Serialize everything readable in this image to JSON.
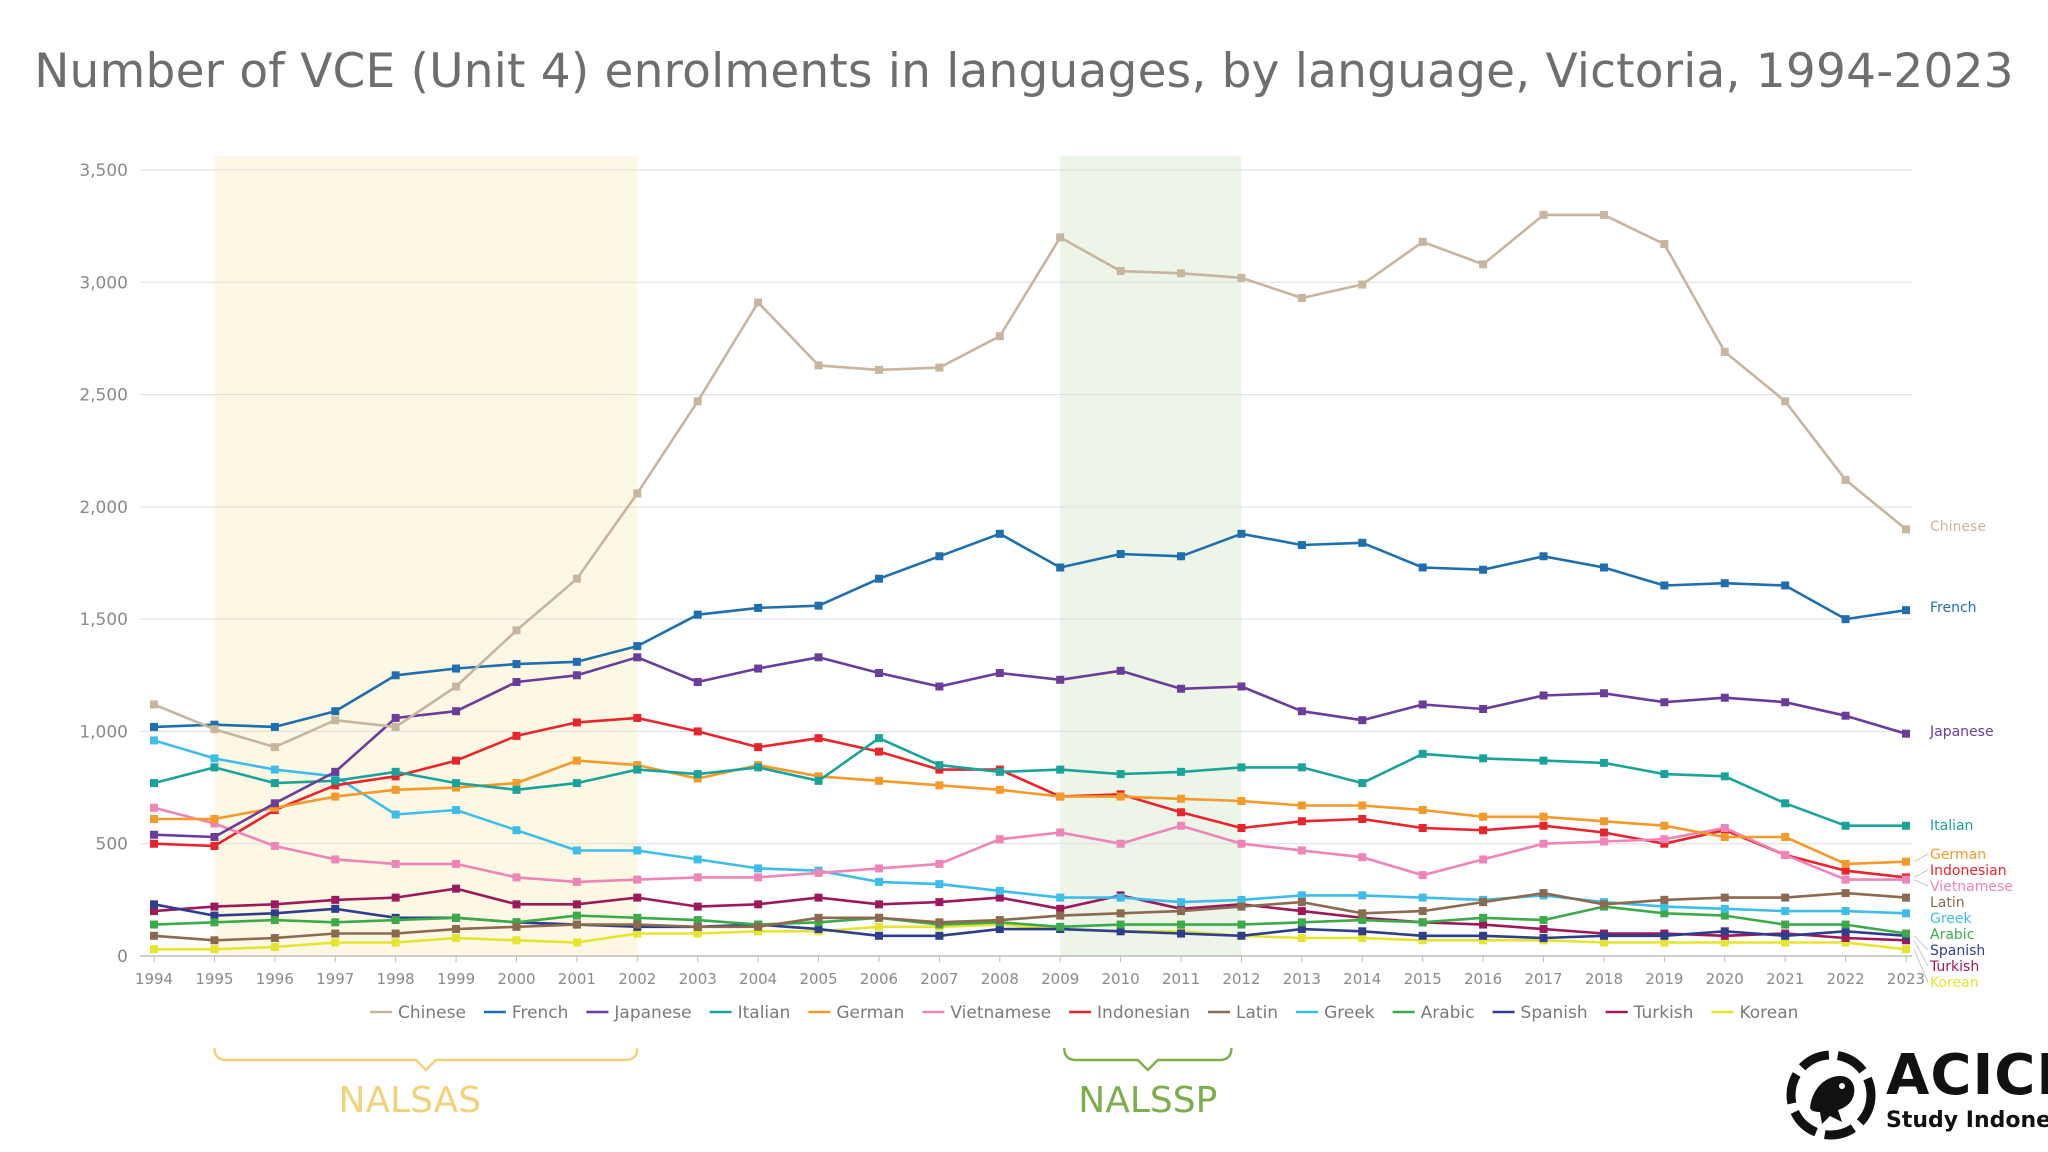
{
  "chart_data": {
    "type": "line",
    "title": "Number of VCE (Unit 4) enrolments in languages, by language, Victoria, 1994-2023",
    "xlabel": "",
    "ylabel": "",
    "ylim": [
      0,
      3500
    ],
    "yticks": [
      0,
      500,
      1000,
      1500,
      2000,
      2500,
      3000,
      3500
    ],
    "ytick_labels": [
      "0",
      "500",
      "1,000",
      "1,500",
      "2,000",
      "2,500",
      "3,000",
      "3,500"
    ],
    "grid": true,
    "legend_position": "bottom",
    "x": [
      1994,
      1995,
      1996,
      1997,
      1998,
      1999,
      2000,
      2001,
      2002,
      2003,
      2004,
      2005,
      2006,
      2007,
      2008,
      2009,
      2010,
      2011,
      2012,
      2013,
      2014,
      2015,
      2016,
      2017,
      2018,
      2019,
      2020,
      2021,
      2022,
      2023
    ],
    "x_labels": [
      "1994",
      "1995",
      "1996",
      "1997",
      "1998",
      "1999",
      "2000",
      "2001",
      "2002",
      "2003",
      "2004",
      "2005",
      "2006",
      "2007",
      "2008",
      "2009",
      "2010",
      "2011",
      "2012",
      "2013",
      "2014",
      "2015",
      "2016",
      "2017",
      "2018",
      "2019",
      "2020",
      "2021",
      "2022",
      "2023"
    ],
    "series": [
      {
        "name": "Chinese",
        "color": "#c7b59e",
        "end_label": "Chinese",
        "values": [
          1120,
          1010,
          930,
          1050,
          1020,
          1200,
          1450,
          1680,
          2060,
          2470,
          2910,
          2630,
          2610,
          2620,
          2760,
          3200,
          3050,
          3040,
          3020,
          2930,
          2990,
          3180,
          3080,
          3300,
          3300,
          3170,
          2690,
          2470,
          2120,
          1900
        ]
      },
      {
        "name": "French",
        "color": "#1f6fae",
        "end_label": "French",
        "values": [
          1020,
          1030,
          1020,
          1090,
          1250,
          1280,
          1300,
          1310,
          1380,
          1520,
          1550,
          1560,
          1680,
          1780,
          1880,
          1730,
          1790,
          1780,
          1880,
          1830,
          1840,
          1730,
          1720,
          1780,
          1730,
          1650,
          1660,
          1650,
          1500,
          1540
        ]
      },
      {
        "name": "Japanese",
        "color": "#6a3d9a",
        "end_label": "Japanese",
        "values": [
          540,
          530,
          680,
          820,
          1060,
          1090,
          1220,
          1250,
          1330,
          1220,
          1280,
          1330,
          1260,
          1200,
          1260,
          1230,
          1270,
          1190,
          1200,
          1090,
          1050,
          1120,
          1100,
          1160,
          1170,
          1130,
          1150,
          1130,
          1070,
          990
        ]
      },
      {
        "name": "Italian",
        "color": "#1aa39a",
        "end_label": "Italian",
        "values": [
          770,
          840,
          770,
          780,
          820,
          770,
          740,
          770,
          830,
          810,
          840,
          780,
          970,
          850,
          820,
          830,
          810,
          820,
          840,
          840,
          770,
          900,
          880,
          870,
          860,
          810,
          800,
          680,
          580,
          580
        ]
      },
      {
        "name": "German",
        "color": "#f39a2a",
        "end_label": "German",
        "values": [
          610,
          610,
          660,
          710,
          740,
          750,
          770,
          870,
          850,
          790,
          850,
          800,
          780,
          760,
          740,
          710,
          710,
          700,
          690,
          670,
          670,
          650,
          620,
          620,
          600,
          580,
          530,
          530,
          410,
          420
        ]
      },
      {
        "name": "Vietnamese",
        "color": "#ef84b8",
        "end_label": "Vietnamese",
        "values": [
          660,
          590,
          490,
          430,
          410,
          410,
          350,
          330,
          340,
          350,
          350,
          370,
          390,
          410,
          520,
          550,
          500,
          580,
          500,
          470,
          440,
          360,
          430,
          500,
          510,
          520,
          570,
          450,
          340,
          340
        ]
      },
      {
        "name": "Indonesian",
        "color": "#e8242c",
        "end_label": "Indonesian",
        "values": [
          500,
          490,
          650,
          760,
          800,
          870,
          980,
          1040,
          1060,
          1000,
          930,
          970,
          910,
          830,
          830,
          710,
          720,
          640,
          570,
          600,
          610,
          570,
          560,
          580,
          550,
          500,
          560,
          450,
          380,
          350
        ]
      },
      {
        "name": "Latin",
        "color": "#8b6a4f",
        "end_label": "Latin",
        "values": [
          90,
          70,
          80,
          100,
          100,
          120,
          130,
          140,
          140,
          130,
          130,
          170,
          170,
          150,
          160,
          180,
          190,
          200,
          220,
          240,
          190,
          200,
          240,
          280,
          230,
          250,
          260,
          260,
          280,
          260
        ]
      },
      {
        "name": "Greek",
        "color": "#3ebde8",
        "end_label": "Greek",
        "values": [
          960,
          880,
          830,
          800,
          630,
          650,
          560,
          470,
          470,
          430,
          390,
          380,
          330,
          320,
          290,
          260,
          260,
          240,
          250,
          270,
          270,
          260,
          250,
          270,
          240,
          220,
          210,
          200,
          200,
          190
        ]
      },
      {
        "name": "Arabic",
        "color": "#3daa4a",
        "end_label": "Arabic",
        "values": [
          140,
          150,
          160,
          150,
          160,
          170,
          150,
          180,
          170,
          160,
          140,
          150,
          170,
          140,
          150,
          130,
          140,
          140,
          140,
          150,
          160,
          150,
          170,
          160,
          220,
          190,
          180,
          140,
          140,
          100
        ]
      },
      {
        "name": "Spanish",
        "color": "#2f3d8f",
        "end_label": "Spanish",
        "values": [
          230,
          180,
          190,
          210,
          170,
          170,
          150,
          140,
          130,
          130,
          140,
          120,
          90,
          90,
          120,
          120,
          110,
          100,
          90,
          120,
          110,
          90,
          90,
          80,
          90,
          90,
          110,
          90,
          110,
          90
        ]
      },
      {
        "name": "Turkish",
        "color": "#9c1a5c",
        "end_label": "Turkish",
        "values": [
          200,
          220,
          230,
          250,
          260,
          300,
          230,
          230,
          260,
          220,
          230,
          260,
          230,
          240,
          260,
          210,
          270,
          210,
          230,
          200,
          170,
          150,
          140,
          120,
          100,
          100,
          90,
          100,
          80,
          70
        ]
      },
      {
        "name": "Korean",
        "color": "#e5e52e",
        "end_label": "Korean",
        "values": [
          30,
          30,
          40,
          60,
          60,
          80,
          70,
          60,
          100,
          100,
          110,
          110,
          130,
          130,
          140,
          120,
          110,
          110,
          90,
          80,
          80,
          70,
          70,
          70,
          60,
          60,
          60,
          60,
          60,
          30
        ]
      }
    ],
    "annotations": [
      {
        "label": "NALSAS",
        "from_year": 1995,
        "to_year": 2002,
        "shade_color": "#fdf8e4",
        "label_color": "#f2d27a"
      },
      {
        "label": "NALSSP",
        "from_year": 2009,
        "to_year": 2012,
        "shade_color": "#edf5e8",
        "label_color": "#7cae4b"
      }
    ]
  },
  "logo": {
    "name": "ACICIS",
    "subtitle": "Study Indonesia"
  }
}
